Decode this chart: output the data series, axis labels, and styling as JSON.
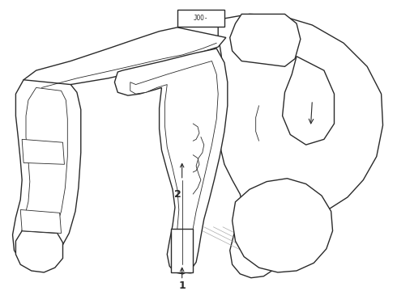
{
  "bg_color": "#ffffff",
  "lc": "#2a2a2a",
  "lw": 1.0,
  "lw_thin": 0.6,
  "fig_width": 4.9,
  "fig_height": 3.6,
  "dpi": 100,
  "label1": "1",
  "label2": "2",
  "label_fontsize": 9,
  "joo_text": "JOO-"
}
